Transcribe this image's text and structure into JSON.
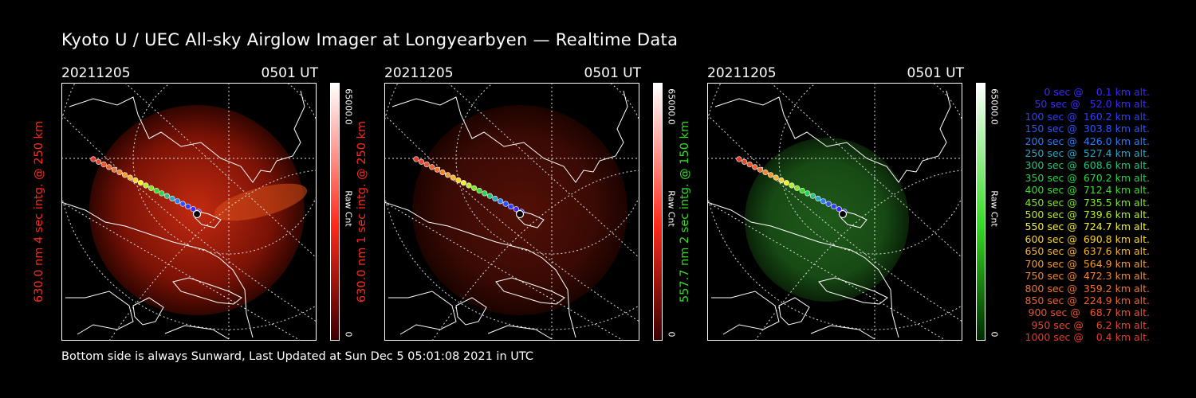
{
  "title": "Kyoto U / UEC All-sky Airglow Imager at Longyearbyen — Realtime Data",
  "footer": "Bottom side is always Sunward, Last Updated at Sun Dec  5 05:01:08 2021 in UTC",
  "panels": [
    {
      "date": "20211205",
      "time": "0501 UT",
      "side_label": "630.0 nm 4 sec intg. @ 250 km",
      "side_color": "#ff2a1a",
      "cbar_max": "65000.0",
      "cbar_unit": "Raw Cnt",
      "cbar_min": "0",
      "image_tint": "red-bright",
      "cbar_top_color": "#ffffff",
      "cbar_bottom_color": "#3a0000"
    },
    {
      "date": "20211205",
      "time": "0501 UT",
      "side_label": "630.0 nm 1 sec intg. @ 250 km",
      "side_color": "#ff2a1a",
      "cbar_max": "65000.0",
      "cbar_unit": "Raw Cnt",
      "cbar_min": "0",
      "image_tint": "red-dim",
      "cbar_top_color": "#ffffff",
      "cbar_bottom_color": "#3a0000"
    },
    {
      "date": "20211205",
      "time": "0501 UT",
      "side_label": "557.7 nm 2 sec intg. @ 150 km",
      "side_color": "#33dd22",
      "cbar_max": "65000.0",
      "cbar_unit": "Raw Cnt",
      "cbar_min": "0",
      "image_tint": "green",
      "cbar_top_color": "#ffffff",
      "cbar_bottom_color": "#002a00"
    }
  ],
  "legend": [
    {
      "text": "   0 sec @    0.1 km alt.",
      "color": "#3a2bff"
    },
    {
      "text": "  50 sec @   52.0 km alt.",
      "color": "#3a2bff"
    },
    {
      "text": " 100 sec @  160.2 km alt.",
      "color": "#2b3fff"
    },
    {
      "text": " 150 sec @  303.8 km alt.",
      "color": "#2b55ff"
    },
    {
      "text": " 200 sec @  426.0 km alt.",
      "color": "#2b7bff"
    },
    {
      "text": " 250 sec @  527.4 km alt.",
      "color": "#2aa7c8"
    },
    {
      "text": " 300 sec @  608.6 km alt.",
      "color": "#27c27e"
    },
    {
      "text": " 350 sec @  670.2 km alt.",
      "color": "#27d44a"
    },
    {
      "text": " 400 sec @  712.4 km alt.",
      "color": "#3cdc28"
    },
    {
      "text": " 450 sec @  735.5 km alt.",
      "color": "#7fe628"
    },
    {
      "text": " 500 sec @  739.6 km alt.",
      "color": "#b7ee2a"
    },
    {
      "text": " 550 sec @  724.7 km alt.",
      "color": "#f2f22c"
    },
    {
      "text": " 600 sec @  690.8 km alt.",
      "color": "#f7d22c"
    },
    {
      "text": " 650 sec @  637.6 km alt.",
      "color": "#f7b32c"
    },
    {
      "text": " 700 sec @  564.9 km alt.",
      "color": "#f59a2c"
    },
    {
      "text": " 750 sec @  472.3 km alt.",
      "color": "#f3852c"
    },
    {
      "text": " 800 sec @  359.2 km alt.",
      "color": "#f0722c"
    },
    {
      "text": " 850 sec @  224.9 km alt.",
      "color": "#ee632c"
    },
    {
      "text": " 900 sec @   68.7 km alt.",
      "color": "#ec542c"
    },
    {
      "text": " 950 sec @    6.2 km alt.",
      "color": "#ea462c"
    },
    {
      "text": "1000 sec @    0.4 km alt.",
      "color": "#e8392c"
    }
  ]
}
